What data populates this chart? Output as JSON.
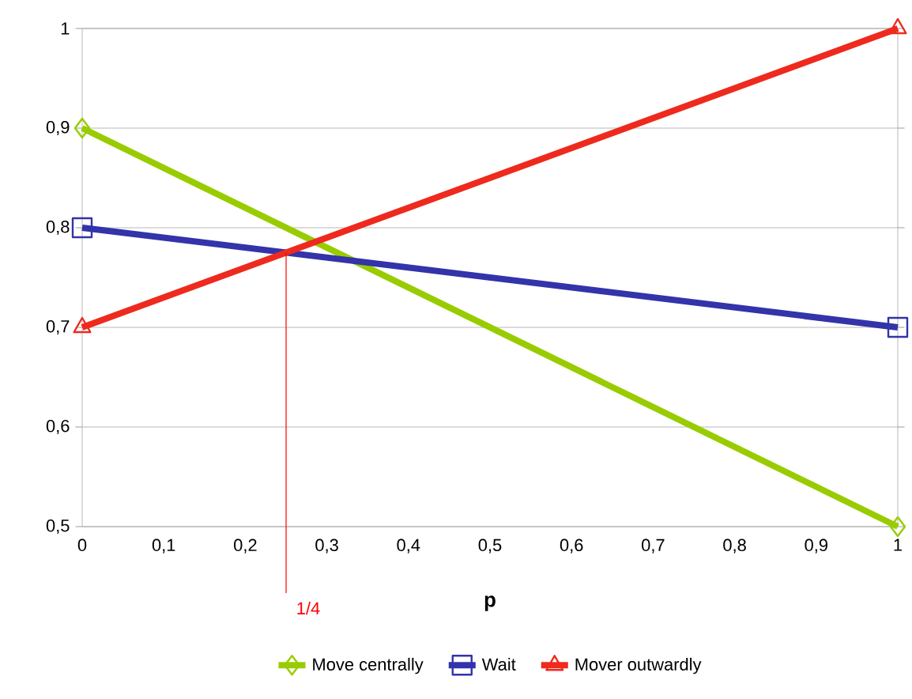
{
  "chart_data": {
    "type": "line",
    "xlabel": "p",
    "x": [
      0,
      1
    ],
    "series": [
      {
        "name": "Move centrally",
        "color": "#99cc00",
        "values": [
          0.9,
          0.5
        ],
        "marker": "diamond"
      },
      {
        "name": "Wait",
        "color": "#3333aa",
        "values": [
          0.8,
          0.7
        ],
        "marker": "square"
      },
      {
        "name": "Mover outwardly",
        "color": "#ee2a1e",
        "values": [
          0.7,
          1.0
        ],
        "marker": "triangle"
      }
    ],
    "xlim": [
      0,
      1
    ],
    "ylim": [
      0.5,
      1
    ],
    "xticks": [
      0,
      {
        "value": 0.1,
        "label": "0,1"
      },
      {
        "value": 0.2,
        "label": "0,2"
      },
      {
        "value": 0.3,
        "label": "0,3"
      },
      {
        "value": 0.4,
        "label": "0,4"
      },
      {
        "value": 0.5,
        "label": "0,5"
      },
      {
        "value": 0.6,
        "label": "0,6"
      },
      {
        "value": 0.7,
        "label": "0,7"
      },
      {
        "value": 0.8,
        "label": "0,8"
      },
      {
        "value": 0.9,
        "label": "0,9"
      },
      1
    ],
    "yticks": [
      {
        "value": 0.5,
        "label": "0,5"
      },
      {
        "value": 0.6,
        "label": "0,6"
      },
      {
        "value": 0.7,
        "label": "0,7"
      },
      {
        "value": 0.8,
        "label": "0,8"
      },
      {
        "value": 0.9,
        "label": "0,9"
      },
      1
    ],
    "annotations": [
      {
        "text": "1/4",
        "x": 0.25,
        "y": 0.775
      }
    ],
    "grid": "y",
    "legend": "bottom",
    "line_style": "solid"
  }
}
